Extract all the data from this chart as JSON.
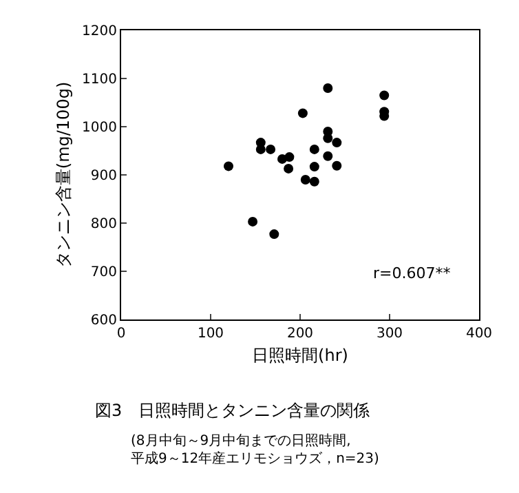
{
  "chart_data": {
    "type": "scatter",
    "title": "図3　日照時間とタンニン含量の関係",
    "subtitle": "(8月中旬～9月中旬までの日照時間,\n平成9～12年産エリモショウズ，n=23)",
    "xlabel": "日照時間(hr)",
    "ylabel": "タンニン含量(mg/100g)",
    "annotations": [
      "r=0.607**"
    ],
    "x": [
      120,
      147,
      171,
      156,
      156,
      167,
      180,
      188,
      187,
      203,
      206,
      216,
      216,
      216,
      231,
      231,
      231,
      231,
      241,
      241,
      294,
      294,
      294
    ],
    "series": [
      {
        "color": "#000000",
        "values": [
          918,
          803,
          777,
          967,
          953,
          953,
          933,
          937,
          913,
          1028,
          890,
          886,
          953,
          917,
          1080,
          990,
          976,
          939,
          967,
          919,
          1065,
          1031,
          1022
        ]
      }
    ],
    "xlim": [
      0,
      400
    ],
    "xticks": [
      0,
      100,
      200,
      300,
      400
    ],
    "ylim": [
      600,
      1200
    ],
    "yticks": [
      600,
      700,
      800,
      900,
      1000,
      1100,
      1200
    ],
    "grid": false,
    "marker": "circle"
  }
}
